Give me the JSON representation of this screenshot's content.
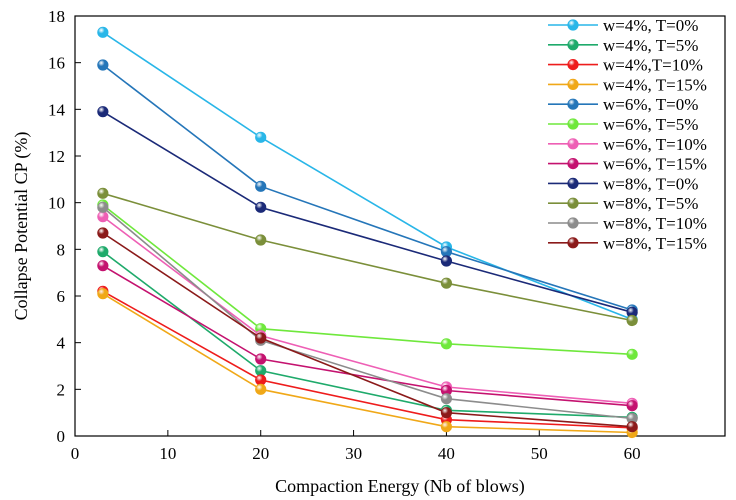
{
  "chart_data": {
    "type": "line",
    "title": "",
    "xlabel": "Compaction Energy (Nb of blows)",
    "ylabel": "Collapse Potential CP (%)",
    "xlim": [
      0,
      70
    ],
    "ylim": [
      0,
      18
    ],
    "xticks": [
      0,
      10,
      20,
      30,
      40,
      50,
      60
    ],
    "yticks": [
      0,
      2,
      4,
      6,
      8,
      10,
      12,
      14,
      16,
      18
    ],
    "x": [
      3,
      20,
      40,
      60
    ],
    "grid": false,
    "legend_position": "top-right",
    "series": [
      {
        "name": "w=4%, T=0%",
        "color": "#29b6e8",
        "values": [
          17.3,
          12.8,
          8.1,
          5.0
        ]
      },
      {
        "name": "w=4%, T=5%",
        "color": "#1faa6b",
        "values": [
          7.9,
          2.8,
          1.1,
          0.8
        ]
      },
      {
        "name": "w=4%,T=10%",
        "color": "#ee1c1c",
        "values": [
          6.2,
          2.4,
          0.7,
          0.35
        ]
      },
      {
        "name": "w=4%, T=15%",
        "color": "#f0a818",
        "values": [
          6.1,
          2.0,
          0.4,
          0.15
        ]
      },
      {
        "name": "w=6%, T=0%",
        "color": "#2576b9",
        "values": [
          15.9,
          10.7,
          7.9,
          5.4
        ]
      },
      {
        "name": "w=6%, T=5%",
        "color": "#6fe83c",
        "values": [
          9.9,
          4.6,
          3.95,
          3.5
        ]
      },
      {
        "name": "w=6%, T=10%",
        "color": "#ee5fb5",
        "values": [
          9.4,
          4.3,
          2.1,
          1.4
        ]
      },
      {
        "name": "w=6%, T=15%",
        "color": "#c4126f",
        "values": [
          7.3,
          3.3,
          1.95,
          1.3
        ]
      },
      {
        "name": "w=8%, T=0%",
        "color": "#1b2a78",
        "values": [
          13.9,
          9.8,
          7.5,
          5.3
        ]
      },
      {
        "name": "w=8%, T=5%",
        "color": "#7b8f3a",
        "values": [
          10.4,
          8.4,
          6.55,
          4.95
        ]
      },
      {
        "name": "w=8%, T=10%",
        "color": "#8c8c8c",
        "values": [
          9.8,
          4.1,
          1.6,
          0.75
        ]
      },
      {
        "name": "w=8%, T=15%",
        "color": "#8b1a1a",
        "values": [
          8.7,
          4.2,
          1.0,
          0.4
        ]
      }
    ]
  }
}
